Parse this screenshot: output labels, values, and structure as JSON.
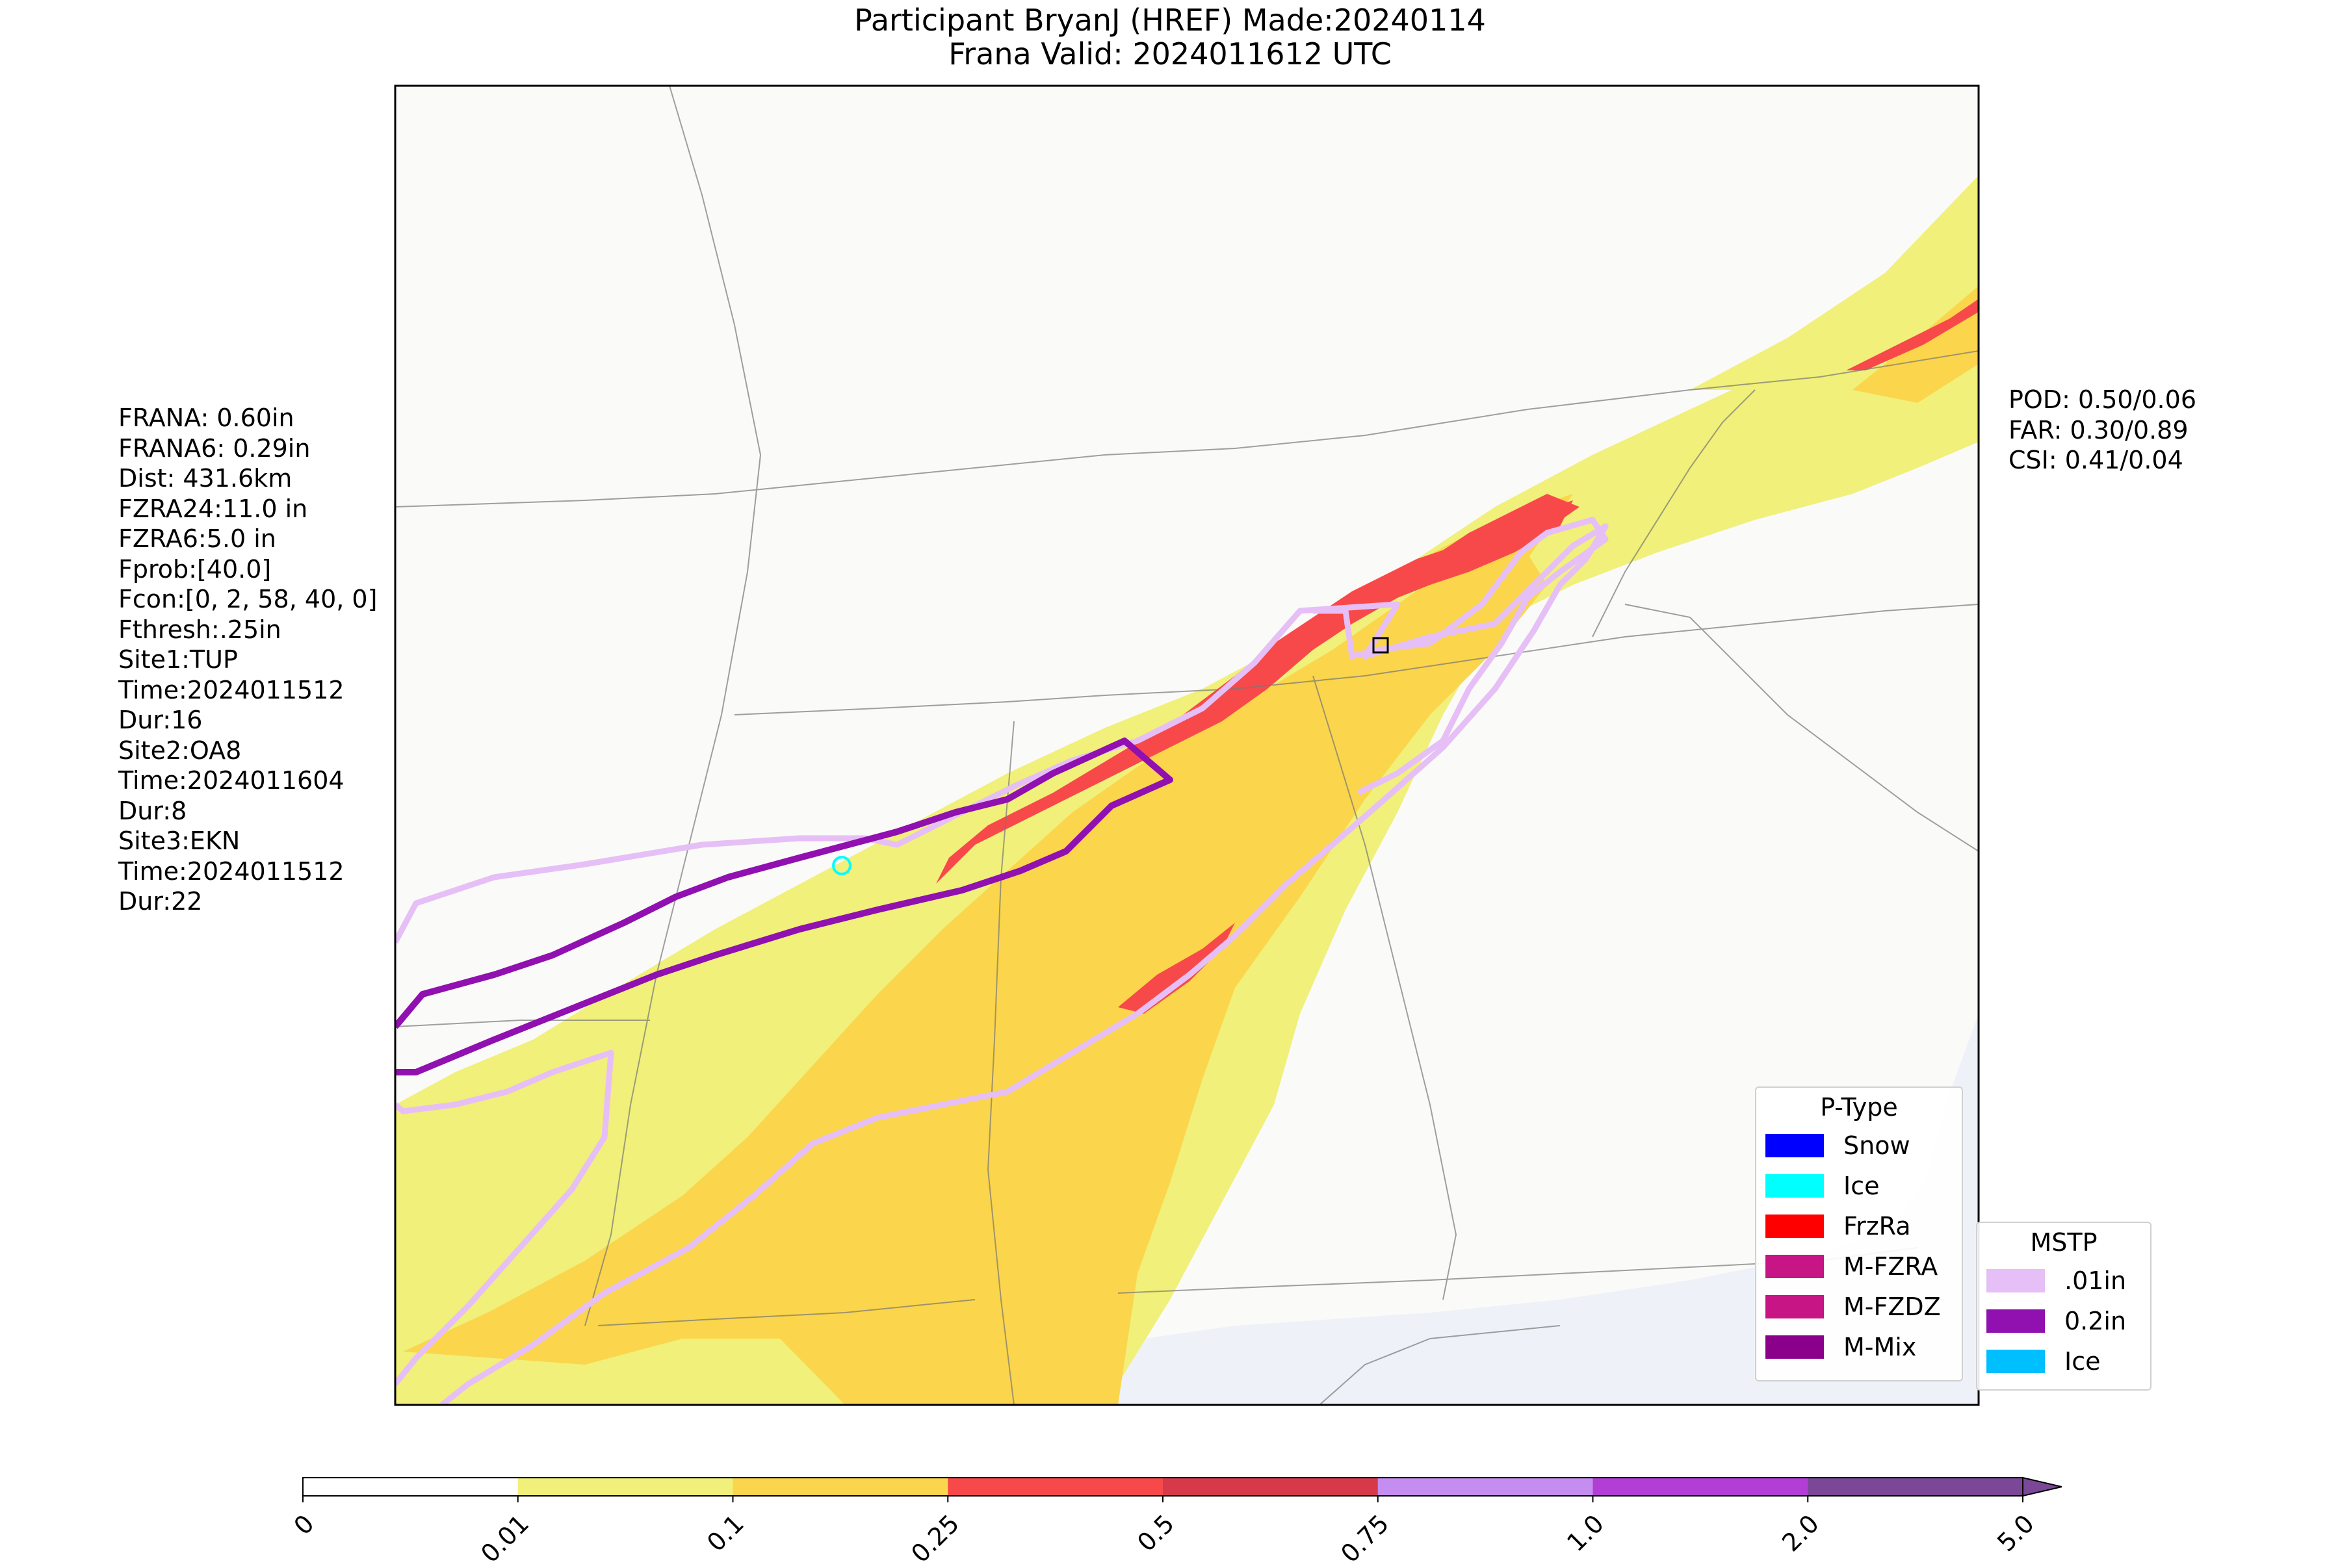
{
  "title": {
    "line1": "Participant BryanJ (HREF) Made:20240114",
    "line2": "Frana Valid: 2024011612 UTC"
  },
  "stats_left": [
    "FRANA: 0.60in",
    "FRANA6: 0.29in",
    "Dist: 431.6km",
    "FZRA24:11.0 in",
    "FZRA6:5.0 in",
    "Fprob:[40.0]",
    "Fcon:[0, 2, 58, 40, 0]",
    "Fthresh:.25in",
    "Site1:TUP",
    "Time:2024011512",
    "Dur:16",
    "Site2:OA8",
    "Time:2024011604",
    "Dur:8",
    "Site3:EKN",
    "Time:2024011512",
    "Dur:22"
  ],
  "stats_right": [
    "POD: 0.50/0.06",
    "FAR: 0.30/0.89",
    "CSI: 0.41/0.04"
  ],
  "legend_ptype": {
    "title": "P-Type",
    "items": [
      {
        "label": "Snow",
        "color": "#0000ff"
      },
      {
        "label": "Ice",
        "color": "#00ffff"
      },
      {
        "label": "FrzRa",
        "color": "#ff0000"
      },
      {
        "label": "M-FZRA",
        "color": "#c71585"
      },
      {
        "label": "M-FZDZ",
        "color": "#c71585"
      },
      {
        "label": "M-Mix",
        "color": "#8b008b"
      }
    ]
  },
  "legend_mstp": {
    "title": "MSTP",
    "items": [
      {
        "label": ".01in",
        "color": "#e6bff6"
      },
      {
        "label": "0.2in",
        "color": "#9010b0"
      },
      {
        "label": "Ice",
        "color": "#00bfff"
      }
    ]
  },
  "colorbar": {
    "ticks": [
      "0",
      "0.01",
      "0.1",
      "0.25",
      "0.5",
      "0.75",
      "1.0",
      "2.0",
      "5.0"
    ],
    "colors": [
      "#ffffff",
      "#f0f07a",
      "#fbd54b",
      "#f8494a",
      "#d63a4a",
      "#c58df0",
      "#b23ed6",
      "#7a4896"
    ]
  },
  "map_colors": {
    "land": "#fafaf8",
    "light_precip": "#f0f07a",
    "moderate_precip": "#fbd54b",
    "heavy_precip": "#f8494a",
    "contour_01": "#e6bff6",
    "contour_02": "#9010b0",
    "ice_marker": "#00ffff",
    "water": "#eef2f8"
  }
}
